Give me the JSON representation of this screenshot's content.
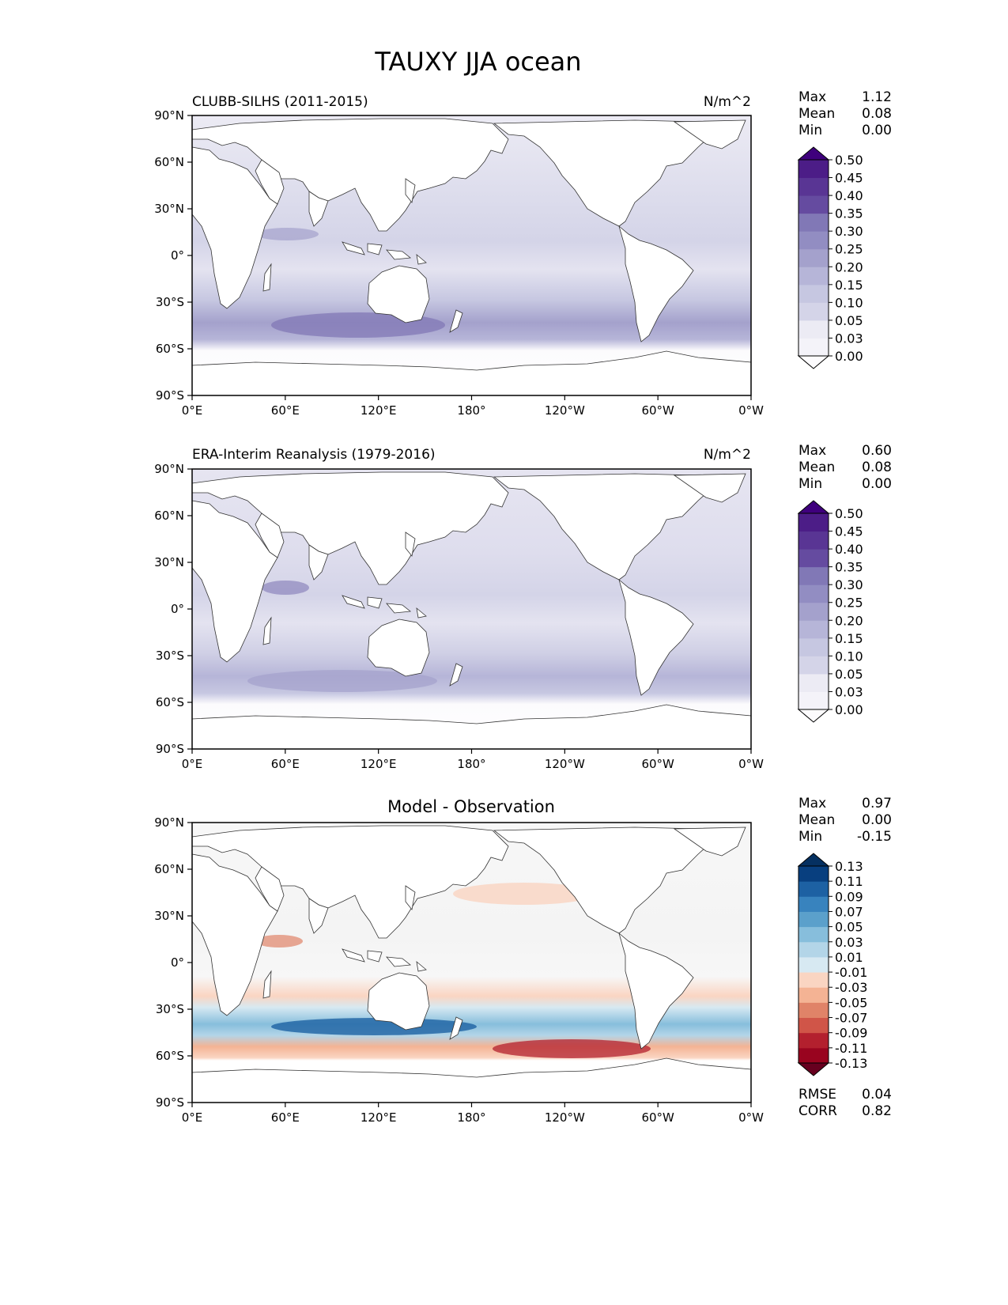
{
  "title": "TAUXY JJA ocean",
  "colors": {
    "land": "#ffffff",
    "coast": "#333333",
    "seq": [
      "#fcfbfd",
      "#f4f3f9",
      "#ecebf4",
      "#e1e0ee",
      "#d4d4e8",
      "#c6c7e1",
      "#b6b5d8",
      "#a4a1cc",
      "#928dc2",
      "#8178b6",
      "#7262ac",
      "#654ba0",
      "#593594",
      "#4c1d87",
      "#3f007d"
    ],
    "div": [
      "#67001f",
      "#99041f",
      "#b3202e",
      "#d05548",
      "#e08368",
      "#f4b394",
      "#fad5c2",
      "#f7f7f7",
      "#d7e9f2",
      "#b3d5e8",
      "#87bedc",
      "#5ba0cb",
      "#3883be",
      "#1d61a3",
      "#083f7f",
      "#053061"
    ]
  },
  "chart_data": [
    {
      "type": "heatmap",
      "id": "p1",
      "title": "CLUBB-SILHS (2011-2015)",
      "units": "N/m^2",
      "stats": [
        {
          "label": "Max",
          "value": "1.12"
        },
        {
          "label": "Mean",
          "value": "0.08"
        },
        {
          "label": "Min",
          "value": "0.00"
        }
      ],
      "levels": [
        "0.00",
        "0.03",
        "0.05",
        "0.10",
        "0.15",
        "0.20",
        "0.25",
        "0.30",
        "0.35",
        "0.40",
        "0.45",
        "0.50"
      ],
      "colormap": "Purples",
      "xlim": [
        0,
        360
      ],
      "ylim": [
        -90,
        90
      ],
      "xticks": [
        "0°E",
        "60°E",
        "120°E",
        "180°",
        "120°W",
        "60°W",
        "0°W"
      ],
      "yticks": [
        "90°N",
        "60°N",
        "30°N",
        "0°",
        "30°S",
        "60°S",
        "90°S"
      ]
    },
    {
      "type": "heatmap",
      "id": "p2",
      "title": "ERA-Interim Reanalysis (1979-2016)",
      "units": "N/m^2",
      "stats": [
        {
          "label": "Max",
          "value": "0.60"
        },
        {
          "label": "Mean",
          "value": "0.08"
        },
        {
          "label": "Min",
          "value": "0.00"
        }
      ],
      "levels": [
        "0.00",
        "0.03",
        "0.05",
        "0.10",
        "0.15",
        "0.20",
        "0.25",
        "0.30",
        "0.35",
        "0.40",
        "0.45",
        "0.50"
      ],
      "colormap": "Purples",
      "xlim": [
        0,
        360
      ],
      "ylim": [
        -90,
        90
      ],
      "xticks": [
        "0°E",
        "60°E",
        "120°E",
        "180°",
        "120°W",
        "60°W",
        "0°W"
      ],
      "yticks": [
        "90°N",
        "60°N",
        "30°N",
        "0°",
        "30°S",
        "60°S",
        "90°S"
      ]
    },
    {
      "type": "heatmap",
      "id": "p3",
      "title": "Model - Observation",
      "units": "",
      "stats": [
        {
          "label": "Max",
          "value": "0.97"
        },
        {
          "label": "Mean",
          "value": "0.00"
        },
        {
          "label": "Min",
          "value": "-0.15"
        }
      ],
      "levels": [
        "-0.13",
        "-0.11",
        "-0.09",
        "-0.07",
        "-0.05",
        "-0.03",
        "-0.01",
        "0.01",
        "0.03",
        "0.05",
        "0.07",
        "0.09",
        "0.11",
        "0.13"
      ],
      "colormap": "RdBu",
      "metrics": [
        {
          "label": "RMSE",
          "value": "0.04"
        },
        {
          "label": "CORR",
          "value": "0.82"
        }
      ],
      "xlim": [
        0,
        360
      ],
      "ylim": [
        -90,
        90
      ],
      "xticks": [
        "0°E",
        "60°E",
        "120°E",
        "180°",
        "120°W",
        "60°W",
        "0°W"
      ],
      "yticks": [
        "90°N",
        "60°N",
        "30°N",
        "0°",
        "30°S",
        "60°S",
        "90°S"
      ]
    }
  ]
}
